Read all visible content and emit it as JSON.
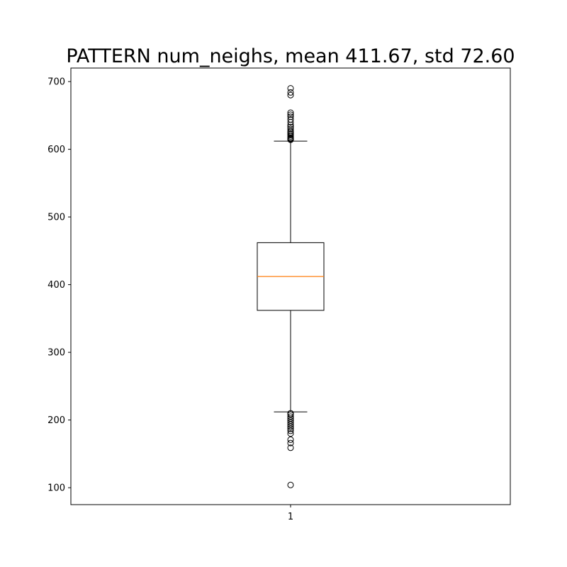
{
  "chart_data": {
    "type": "boxplot",
    "title": "PATTERN num_neighs, mean 411.67, std 72.60",
    "xlabel": "",
    "ylabel": "",
    "categories": [
      "1"
    ],
    "ylim": [
      75,
      720
    ],
    "yticks": [
      100,
      200,
      300,
      400,
      500,
      600,
      700
    ],
    "grid": false,
    "box": {
      "q1": 362,
      "median": 412,
      "q3": 462,
      "whisker_low": 212,
      "whisker_high": 612
    },
    "outliers_high": [
      614,
      615,
      616,
      617,
      619,
      621,
      623,
      625,
      627,
      630,
      633,
      636,
      640,
      644,
      648,
      651,
      654,
      680,
      684,
      690
    ],
    "outliers_low": [
      104,
      159,
      166,
      171,
      180,
      184,
      187,
      190,
      193,
      196,
      199,
      202,
      205,
      208,
      210
    ],
    "colors": {
      "box": "#000000",
      "median": "#ff7f0e",
      "outlier": "#000000"
    }
  }
}
